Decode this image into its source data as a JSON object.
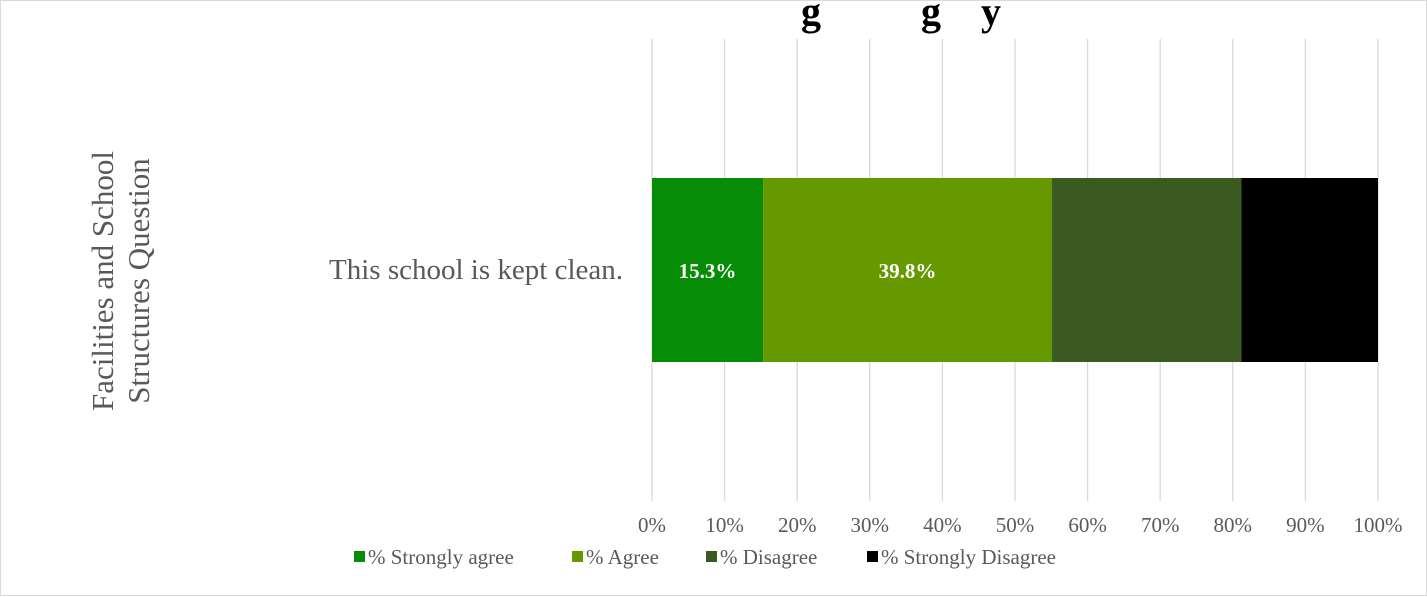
{
  "chart_data": {
    "type": "bar",
    "orientation": "horizontal",
    "stacked": true,
    "stack_mode": "percent",
    "title": "",
    "title_visible_fragment": "g          g    y",
    "xlabel": "",
    "ylabel": "Facilities and School Structures Question",
    "ylabel_lines": [
      "Facilities and School",
      "Structures Question"
    ],
    "categories": [
      "This school is kept clean."
    ],
    "xlim": [
      0,
      100
    ],
    "x_ticks": [
      "0%",
      "10%",
      "20%",
      "30%",
      "40%",
      "50%",
      "60%",
      "70%",
      "80%",
      "90%",
      "100%"
    ],
    "grid": true,
    "legend_position": "bottom",
    "series": [
      {
        "name": "% Strongly agree",
        "values": [
          15.3
        ],
        "color": "#078c07",
        "label": "15.3%"
      },
      {
        "name": "% Agree",
        "values": [
          39.8
        ],
        "color": "#669900",
        "label": "39.8%"
      },
      {
        "name": "% Disagree",
        "values": [
          26.1
        ],
        "color": "#3a5a22",
        "label": ""
      },
      {
        "name": "% Strongly Disagree",
        "values": [
          18.8
        ],
        "color": "#000000",
        "label": ""
      }
    ]
  }
}
